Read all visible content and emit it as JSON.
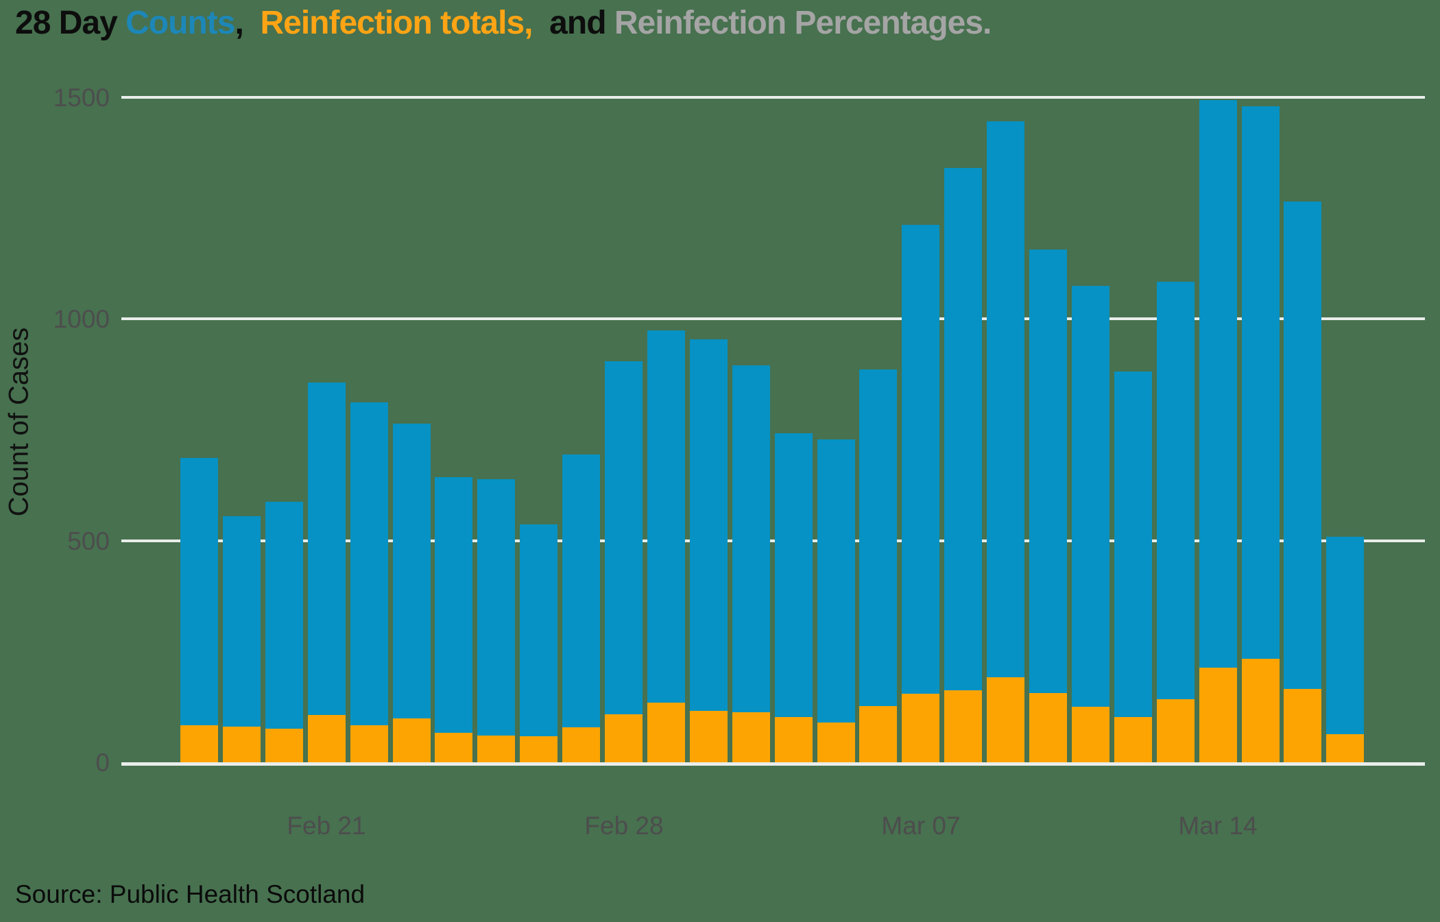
{
  "title": {
    "segments": [
      {
        "text": "28 Day ",
        "color": "#0D0D0D"
      },
      {
        "text": "Counts",
        "color": "#1D87B8"
      },
      {
        "text": ",  ",
        "color": "#0D0D0D"
      },
      {
        "text": "Reinfection totals,",
        "color": "#FFA415"
      },
      {
        "text": "  and ",
        "color": "#0D0D0D"
      },
      {
        "text": "Reinfection Percentages.",
        "color": "#A5A5A5"
      }
    ]
  },
  "y_axis": {
    "label": "Count of Cases",
    "ticks": [
      "1500",
      "1000",
      "500",
      "0"
    ]
  },
  "x_axis": {
    "ticks": [
      {
        "label": "Feb 21",
        "bar": 3
      },
      {
        "label": "Feb 28",
        "bar": 10
      },
      {
        "label": "Mar 07",
        "bar": 17
      },
      {
        "label": "Mar 14",
        "bar": 24
      }
    ]
  },
  "source": "Source: Public Health Scotland",
  "colors": {
    "background": "#47714F",
    "count_bar": "#0692C4",
    "reinfection_bar": "#FDA403",
    "gridline": "#E9EDEB",
    "tick_label": "#4D4D4D"
  },
  "chart_data": {
    "type": "bar",
    "title": "28 Day Counts, Reinfection totals, and Reinfection Percentages.",
    "ylabel": "Count of Cases",
    "ylim": [
      0,
      1500
    ],
    "grid": "horizontal",
    "legend_position": "in-title",
    "categories": [
      "Feb 18",
      "Feb 19",
      "Feb 20",
      "Feb 21",
      "Feb 22",
      "Feb 23",
      "Feb 24",
      "Feb 25",
      "Feb 26",
      "Feb 27",
      "Feb 28",
      "Mar 01",
      "Mar 02",
      "Mar 03",
      "Mar 04",
      "Mar 05",
      "Mar 06",
      "Mar 07",
      "Mar 08",
      "Mar 09",
      "Mar 10",
      "Mar 11",
      "Mar 12",
      "Mar 13",
      "Mar 14",
      "Mar 15",
      "Mar 16",
      "Mar 17"
    ],
    "series": [
      {
        "name": "Counts",
        "color": "#0692C4",
        "values": [
          687,
          555,
          588,
          856,
          812,
          764,
          644,
          639,
          536,
          694,
          905,
          974,
          954,
          895,
          743,
          728,
          886,
          1212,
          1341,
          1446,
          1156,
          1075,
          882,
          1084,
          1493,
          1480,
          1265,
          509
        ]
      },
      {
        "name": "Reinfection totals",
        "color": "#FDA403",
        "values": [
          84,
          80,
          76,
          107,
          84,
          99,
          67,
          61,
          58,
          79,
          108,
          134,
          116,
          113,
          102,
          90,
          127,
          155,
          163,
          191,
          156,
          125,
          102,
          143,
          214,
          233,
          165,
          63
        ]
      }
    ]
  }
}
